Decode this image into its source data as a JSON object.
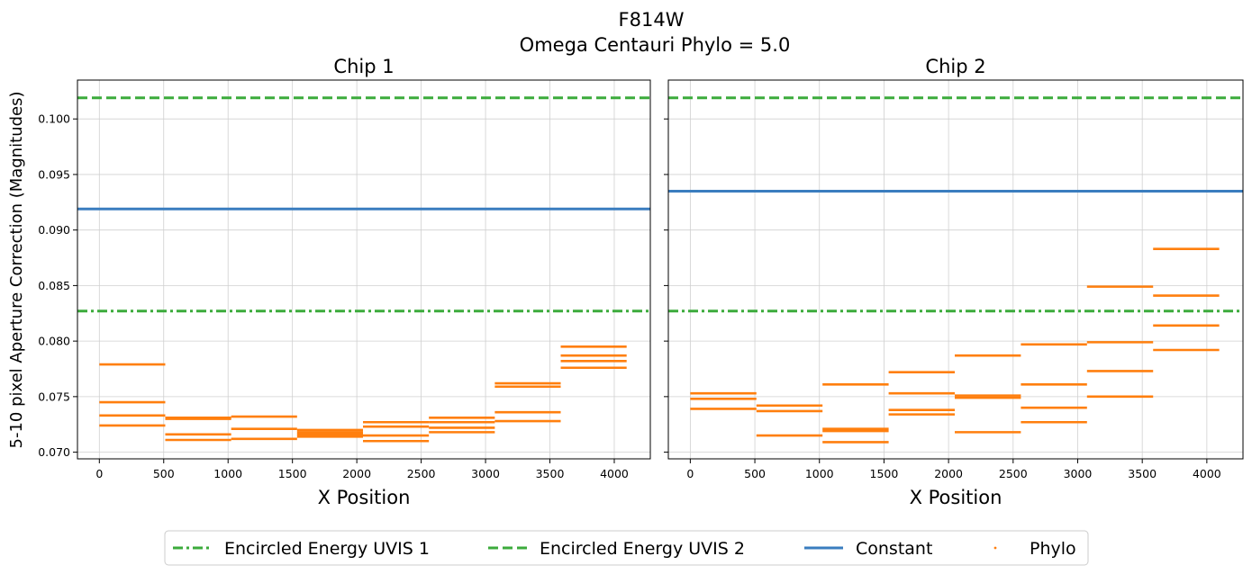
{
  "figure": {
    "suptitle_line1": "F814W",
    "suptitle_line2": "Omega Centauri Phylo = 5.0",
    "ylabel": "5-10 pixel Aperture Correction (Magnitudes)"
  },
  "colors": {
    "ee1": "#3cab3c",
    "ee2": "#3cab3c",
    "constant": "#3a7dbf",
    "phylo": "#ff7f0e",
    "grid": "#d0d0d0"
  },
  "chart_data": [
    {
      "type": "line",
      "title": "Chip 1",
      "xlabel": "X Position",
      "xlim": [
        -170,
        4280
      ],
      "ylim": [
        0.0694,
        0.1035
      ],
      "xticks": [
        "0",
        "500",
        "1000",
        "1500",
        "2000",
        "2500",
        "3000",
        "3500",
        "4000"
      ],
      "xtick_values": [
        0,
        500,
        1000,
        1500,
        2000,
        2500,
        3000,
        3500,
        4000
      ],
      "yticks": [
        "0.070",
        "0.075",
        "0.080",
        "0.085",
        "0.090",
        "0.095",
        "0.100"
      ],
      "ytick_values": [
        0.07,
        0.075,
        0.08,
        0.085,
        0.09,
        0.095,
        0.1
      ],
      "series": [
        {
          "name": "Encircled Energy UVIS 1",
          "value": 0.0827,
          "style": "dashdot"
        },
        {
          "name": "Encircled Energy UVIS 2",
          "value": 0.1019,
          "style": "dashed"
        },
        {
          "name": "Constant",
          "value": 0.0919,
          "style": "solid"
        }
      ],
      "phylo_segments": [
        {
          "x0": 0,
          "x1": 512,
          "values": [
            0.0779,
            0.0745,
            0.0733,
            0.0724
          ]
        },
        {
          "x0": 512,
          "x1": 1024,
          "values": [
            0.0731,
            0.073,
            0.0716,
            0.0711
          ]
        },
        {
          "x0": 1024,
          "x1": 1536,
          "values": [
            0.0732,
            0.0721,
            0.0712
          ]
        },
        {
          "x0": 1536,
          "x1": 2048,
          "values": [
            0.072,
            0.0718,
            0.0716,
            0.0714
          ]
        },
        {
          "x0": 2048,
          "x1": 2560,
          "values": [
            0.0727,
            0.0723,
            0.0715,
            0.071
          ]
        },
        {
          "x0": 2560,
          "x1": 3072,
          "values": [
            0.0731,
            0.0727,
            0.0722,
            0.0718
          ]
        },
        {
          "x0": 3072,
          "x1": 3584,
          "values": [
            0.0762,
            0.0759,
            0.0736,
            0.0728
          ]
        },
        {
          "x0": 3584,
          "x1": 4096,
          "values": [
            0.0795,
            0.0787,
            0.0782,
            0.0776
          ]
        }
      ]
    },
    {
      "type": "line",
      "title": "Chip 2",
      "xlabel": "X Position",
      "xlim": [
        -170,
        4280
      ],
      "ylim": [
        0.0694,
        0.1035
      ],
      "xticks": [
        "0",
        "500",
        "1000",
        "1500",
        "2000",
        "2500",
        "3000",
        "3500",
        "4000"
      ],
      "xtick_values": [
        0,
        500,
        1000,
        1500,
        2000,
        2500,
        3000,
        3500,
        4000
      ],
      "yticks": [
        "0.070",
        "0.075",
        "0.080",
        "0.085",
        "0.090",
        "0.095",
        "0.100"
      ],
      "ytick_values": [
        0.07,
        0.075,
        0.08,
        0.085,
        0.09,
        0.095,
        0.1
      ],
      "series": [
        {
          "name": "Encircled Energy UVIS 1",
          "value": 0.0827,
          "style": "dashdot"
        },
        {
          "name": "Encircled Energy UVIS 2",
          "value": 0.1019,
          "style": "dashed"
        },
        {
          "name": "Constant",
          "value": 0.0935,
          "style": "solid"
        }
      ],
      "phylo_segments": [
        {
          "x0": 0,
          "x1": 512,
          "values": [
            0.0753,
            0.0748,
            0.0739
          ]
        },
        {
          "x0": 512,
          "x1": 1024,
          "values": [
            0.0742,
            0.0737,
            0.0715
          ]
        },
        {
          "x0": 1024,
          "x1": 1536,
          "values": [
            0.0761,
            0.0721,
            0.0719,
            0.0709
          ]
        },
        {
          "x0": 1536,
          "x1": 2048,
          "values": [
            0.0772,
            0.0753,
            0.0738,
            0.0734
          ]
        },
        {
          "x0": 2048,
          "x1": 2560,
          "values": [
            0.0787,
            0.0751,
            0.0749,
            0.0718
          ]
        },
        {
          "x0": 2560,
          "x1": 3072,
          "values": [
            0.0797,
            0.0761,
            0.074,
            0.0727
          ]
        },
        {
          "x0": 3072,
          "x1": 3584,
          "values": [
            0.0849,
            0.0799,
            0.0773,
            0.075
          ]
        },
        {
          "x0": 3584,
          "x1": 4096,
          "values": [
            0.0883,
            0.0841,
            0.0814,
            0.0792
          ]
        }
      ]
    }
  ],
  "legend": {
    "entries": [
      {
        "label": "Encircled Energy UVIS 1",
        "style": "dashdot"
      },
      {
        "label": "Encircled Energy UVIS 2",
        "style": "dashed"
      },
      {
        "label": "Constant",
        "style": "solid"
      },
      {
        "label": "Phylo",
        "style": "dot"
      }
    ]
  }
}
